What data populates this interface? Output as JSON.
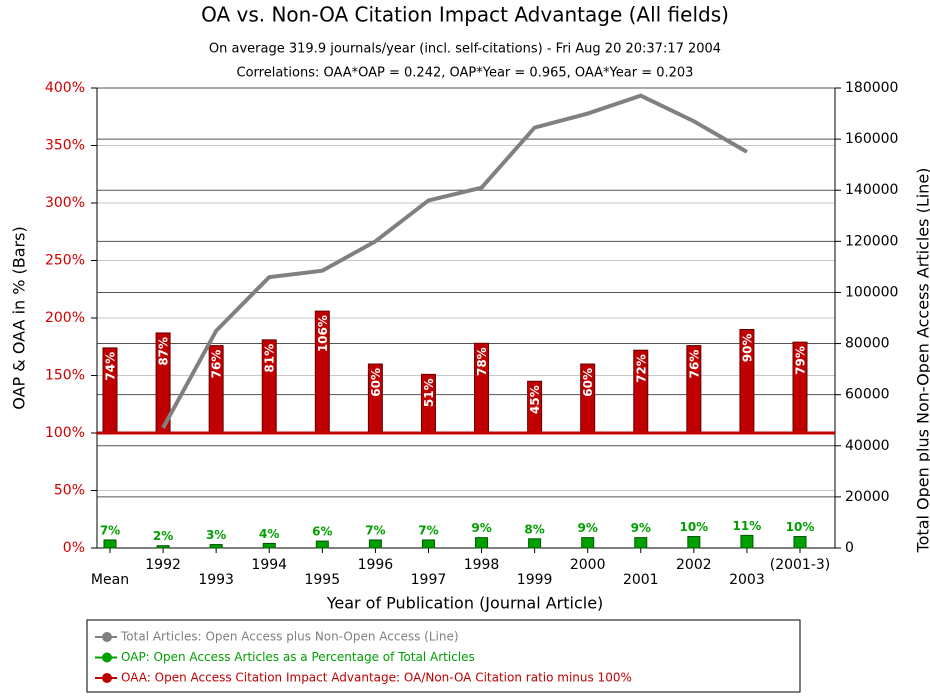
{
  "chart_data": {
    "type": "bar-line",
    "title": "OA vs. Non-OA Citation Impact Advantage (All fields)",
    "subtitle": "On average 319.9 journals/year (incl. self-citations) - Fri Aug 20 20:37:17 2004",
    "annotation": "Correlations:  OAA*OAP = 0.242, OAP*Year = 0.965, OAA*Year = 0.203",
    "x_label": "Year of Publication (Journal Article)",
    "y_label": "OAP & OAA in % (Bars)",
    "y2_label": "Total Open plus Non-Open Access Articles (Line)",
    "categories": [
      "Mean",
      "1992",
      "1993",
      "1994",
      "1995",
      "1996",
      "1997",
      "1998",
      "1999",
      "2000",
      "2001",
      "2002",
      "2003",
      "(2001-3)"
    ],
    "ylim": [
      0,
      400
    ],
    "yticks": [
      {
        "value": 0,
        "label": "0%"
      },
      {
        "value": 50,
        "label": "50%"
      },
      {
        "value": 100,
        "label": "100%"
      },
      {
        "value": 150,
        "label": "150%"
      },
      {
        "value": 200,
        "label": "200%"
      },
      {
        "value": 250,
        "label": "250%"
      },
      {
        "value": 300,
        "label": "300%"
      },
      {
        "value": 350,
        "label": "350%"
      },
      {
        "value": 400,
        "label": "400%"
      }
    ],
    "y2lim": [
      0,
      180000
    ],
    "y2ticks": [
      0,
      20000,
      40000,
      60000,
      80000,
      100000,
      120000,
      140000,
      160000,
      180000
    ],
    "oaa_baseline": 100,
    "grid": true,
    "series": [
      {
        "name": "Total Articles: Open Access plus Non-Open Access (Line)",
        "color": "#808080",
        "axis": "y2",
        "kind": "line",
        "values": [
          null,
          47000,
          85000,
          106000,
          108500,
          120000,
          136000,
          141000,
          164500,
          170000,
          177000,
          167000,
          155000,
          null
        ]
      },
      {
        "name": "OAP: Open Access Articles as a Percentage of Total Articles",
        "color": "#00a000",
        "kind": "bar",
        "values": [
          7,
          2,
          3,
          4,
          6,
          7,
          7,
          9,
          8,
          9,
          9,
          10,
          11,
          10
        ],
        "value_labels": [
          "7%",
          "2%",
          "3%",
          "4%",
          "6%",
          "7%",
          "7%",
          "9%",
          "8%",
          "9%",
          "9%",
          "10%",
          "11%",
          "10%"
        ]
      },
      {
        "name": "OAA: Open Access Citation Impact Advantage: OA/Non-OA Citation ratio minus 100%",
        "color": "#c00000",
        "kind": "baseline-bar",
        "values": [
          74,
          87,
          76,
          81,
          106,
          60,
          51,
          78,
          45,
          60,
          72,
          76,
          90,
          79
        ],
        "value_labels": [
          "74%",
          "87%",
          "76%",
          "81%",
          "106%",
          "60%",
          "51%",
          "78%",
          "45%",
          "60%",
          "72%",
          "76%",
          "90%",
          "79%"
        ]
      }
    ]
  }
}
